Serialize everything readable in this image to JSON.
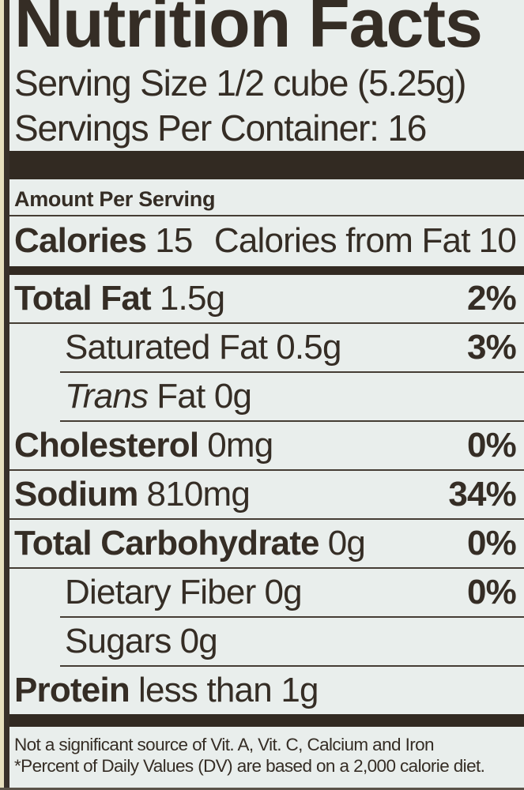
{
  "label": {
    "title": "Nutrition Facts",
    "serving_size": "Serving Size 1/2 cube (5.25g)",
    "servings_per_container": "Servings Per Container: 16",
    "amount_per_serving": "Amount Per Serving",
    "calories": {
      "label": "Calories",
      "value": "15",
      "from_fat_label": "Calories from Fat",
      "from_fat_value": "10"
    },
    "nutrients": [
      {
        "name": "Total Fat",
        "amount": "1.5g",
        "dv": "2%"
      },
      {
        "name": "Saturated Fat",
        "amount": "0.5g",
        "dv": "3%"
      },
      {
        "name": "Trans",
        "amount": "Fat 0g",
        "dv": ""
      },
      {
        "name": "Cholesterol",
        "amount": "0mg",
        "dv": "0%"
      },
      {
        "name": "Sodium",
        "amount": "810mg",
        "dv": "34%"
      },
      {
        "name": "Total Carbohydrate",
        "amount": "0g",
        "dv": "0%"
      },
      {
        "name": "Dietary Fiber",
        "amount": "0g",
        "dv": "0%"
      },
      {
        "name": "Sugars",
        "amount": "0g",
        "dv": ""
      },
      {
        "name": "Protein",
        "amount": "less than 1g",
        "dv": ""
      }
    ],
    "footnotes": [
      "Not a significant source of Vit. A, Vit. C, Calcium and Iron",
      "*Percent of Daily Values (DV) are based on a 2,000 calorie diet."
    ],
    "colors": {
      "ink": "#352d25",
      "bar": "#322a22",
      "label_background": "#e9eeec",
      "edge_cream": "#e8e0bf",
      "left_border": "#38302a"
    }
  }
}
